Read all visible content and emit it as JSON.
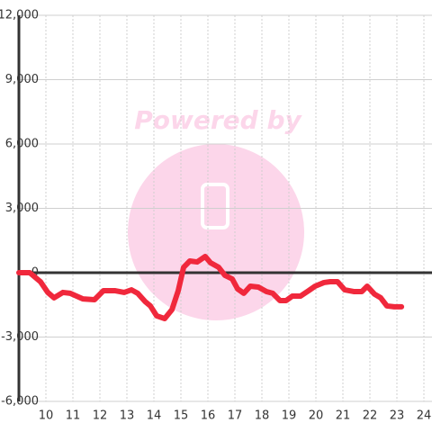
{
  "chart_data": {
    "type": "line",
    "watermark": "Powered by",
    "x": [
      9.0,
      9.4,
      9.8,
      10.07,
      10.3,
      10.63,
      10.9,
      11.37,
      11.8,
      12.13,
      12.57,
      12.9,
      13.17,
      13.4,
      13.67,
      13.87,
      14.1,
      14.4,
      14.67,
      14.9,
      15.1,
      15.33,
      15.6,
      15.9,
      16.1,
      16.4,
      16.63,
      16.9,
      17.1,
      17.33,
      17.57,
      17.87,
      18.17,
      18.4,
      18.67,
      18.9,
      19.13,
      19.43,
      19.73,
      19.97,
      20.3,
      20.53,
      20.8,
      21.07,
      21.4,
      21.7,
      21.9,
      22.17,
      22.4,
      22.63,
      22.9,
      23.17
    ],
    "series": [
      {
        "color": "#f0283c",
        "values": [
          0,
          0,
          -420,
          -920,
          -1170,
          -920,
          -960,
          -1220,
          -1260,
          -840,
          -840,
          -920,
          -800,
          -960,
          -1340,
          -1550,
          -2010,
          -2140,
          -1720,
          -840,
          250,
          545,
          500,
          755,
          460,
          250,
          -125,
          -290,
          -755,
          -960,
          -630,
          -670,
          -880,
          -960,
          -1300,
          -1300,
          -1090,
          -1090,
          -840,
          -630,
          -460,
          -420,
          -420,
          -800,
          -880,
          -880,
          -630,
          -1000,
          -1170,
          -1550,
          -1590,
          -1590
        ]
      }
    ],
    "xlim": [
      9,
      24.3
    ],
    "xticks": [
      10,
      11,
      12,
      13,
      14,
      15,
      16,
      17,
      18,
      19,
      20,
      21,
      22,
      23,
      24
    ],
    "ylim": [
      -6000,
      12000
    ],
    "yticks": [
      {
        "value": -6000,
        "label": "-6,000"
      },
      {
        "value": -3000,
        "label": "-3,000"
      },
      0,
      {
        "value": 3000,
        "label": "3,000"
      },
      {
        "value": 6000,
        "label": "6,000"
      },
      {
        "value": 9000,
        "label": "9,000"
      },
      {
        "value": 12000,
        "label": "12,000"
      }
    ],
    "grid": true
  }
}
